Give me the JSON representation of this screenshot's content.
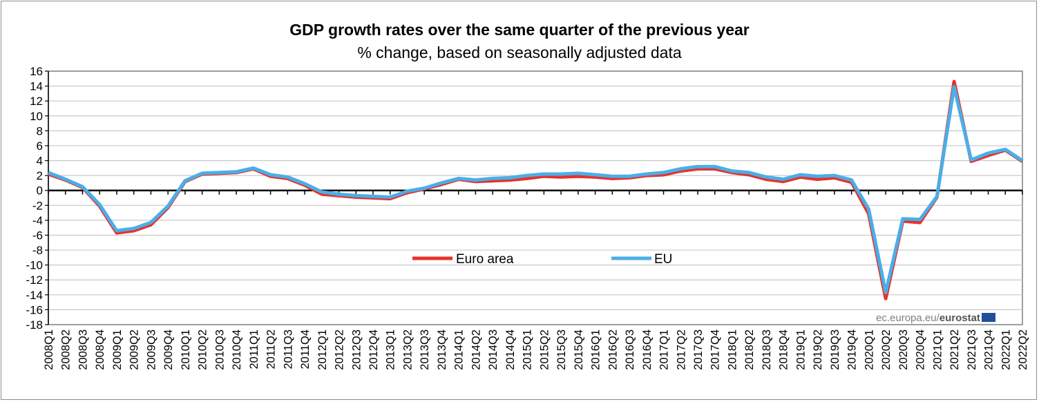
{
  "chart_data": {
    "type": "line",
    "title": "GDP growth rates over the same quarter of the previous year",
    "subtitle": "% change, based on seasonally adjusted data",
    "xlabel": "",
    "ylabel": "",
    "ylim": [
      -18,
      16
    ],
    "yticks": [
      16,
      14,
      12,
      10,
      8,
      6,
      4,
      2,
      0,
      -2,
      -4,
      -6,
      -8,
      -10,
      -12,
      -14,
      -16,
      -18
    ],
    "grid": true,
    "legend": "center",
    "categories": [
      "2008Q1",
      "2008Q2",
      "2008Q3",
      "2008Q4",
      "2009Q1",
      "2009Q2",
      "2009Q3",
      "2009Q4",
      "2010Q1",
      "2010Q2",
      "2010Q3",
      "2010Q4",
      "2011Q1",
      "2011Q2",
      "2011Q3",
      "2011Q4",
      "2012Q1",
      "2012Q2",
      "2012Q3",
      "2012Q4",
      "2013Q1",
      "2013Q2",
      "2013Q3",
      "2013Q4",
      "2014Q1",
      "2014Q2",
      "2014Q3",
      "2014Q4",
      "2015Q1",
      "2015Q2",
      "2015Q3",
      "2015Q4",
      "2016Q1",
      "2016Q2",
      "2016Q3",
      "2016Q4",
      "2017Q1",
      "2017Q2",
      "2017Q3",
      "2017Q4",
      "2018Q1",
      "2018Q2",
      "2018Q3",
      "2018Q4",
      "2019Q1",
      "2019Q2",
      "2019Q3",
      "2019Q4",
      "2020Q1",
      "2020Q2",
      "2020Q3",
      "2020Q4",
      "2021Q1",
      "2021Q2",
      "2021Q3",
      "2021Q4",
      "2022Q1",
      "2022Q2"
    ],
    "series": [
      {
        "name": "Euro area",
        "color": "#e8312a",
        "values": [
          2.2,
          1.4,
          0.4,
          -2.1,
          -5.7,
          -5.4,
          -4.6,
          -2.3,
          1.2,
          2.2,
          2.3,
          2.4,
          2.9,
          1.9,
          1.6,
          0.7,
          -0.5,
          -0.7,
          -0.9,
          -1.0,
          -1.1,
          -0.3,
          0.2,
          0.8,
          1.5,
          1.2,
          1.3,
          1.4,
          1.6,
          1.9,
          1.8,
          1.9,
          1.8,
          1.6,
          1.7,
          2.0,
          2.1,
          2.6,
          2.9,
          2.9,
          2.4,
          2.1,
          1.5,
          1.2,
          1.8,
          1.5,
          1.7,
          1.1,
          -3.1,
          -14.5,
          -4.1,
          -4.3,
          -0.9,
          14.6,
          3.9,
          4.7,
          5.4,
          3.9
        ]
      },
      {
        "name": "EU",
        "color": "#4aaee8",
        "values": [
          2.4,
          1.5,
          0.5,
          -1.9,
          -5.4,
          -5.1,
          -4.3,
          -2.1,
          1.3,
          2.3,
          2.4,
          2.5,
          3.0,
          2.1,
          1.8,
          0.9,
          -0.2,
          -0.5,
          -0.7,
          -0.8,
          -0.9,
          -0.1,
          0.3,
          1.0,
          1.6,
          1.4,
          1.6,
          1.7,
          2.0,
          2.2,
          2.2,
          2.3,
          2.1,
          1.9,
          1.9,
          2.2,
          2.4,
          2.9,
          3.2,
          3.2,
          2.6,
          2.4,
          1.8,
          1.5,
          2.1,
          1.9,
          2.0,
          1.4,
          -2.5,
          -13.7,
          -3.8,
          -3.9,
          -0.8,
          13.9,
          4.1,
          5.0,
          5.5,
          4.0
        ]
      }
    ]
  },
  "credit": {
    "prefix": "ec.europa.eu/",
    "brand": "eurostat"
  }
}
